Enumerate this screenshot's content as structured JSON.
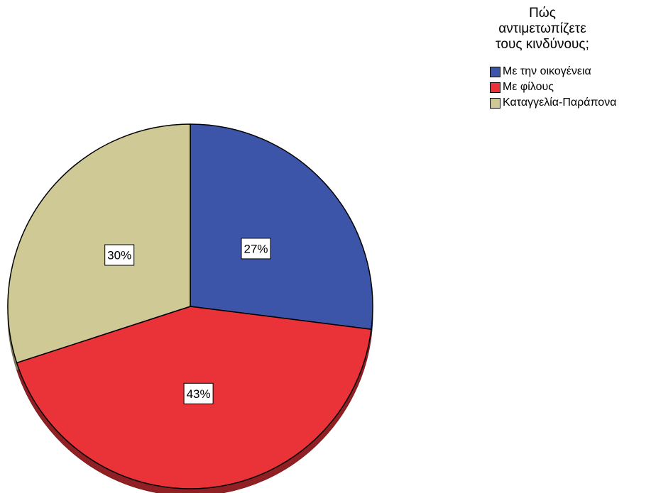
{
  "chart_data": {
    "type": "pie",
    "title": "",
    "legend": {
      "title": "Πώς αντιμετωπίζετε τους κινδύνους;",
      "title_lines": [
        "Πώς αντιμετωπίζετε",
        "τους κινδύνους;"
      ],
      "placement": "top-right"
    },
    "slices": [
      {
        "label": "Με την οικογένεια",
        "value": 27,
        "display": "27%",
        "color": "#3d55a8"
      },
      {
        "label": "Με φίλους",
        "value": 43,
        "display": "43%",
        "color": "#e93338"
      },
      {
        "label": "Καταγγελία-Παράπονα",
        "value": 30,
        "display": "30%",
        "color": "#cfc995"
      }
    ],
    "start_angle_deg": 0,
    "direction": "clockwise",
    "unit": "%"
  }
}
